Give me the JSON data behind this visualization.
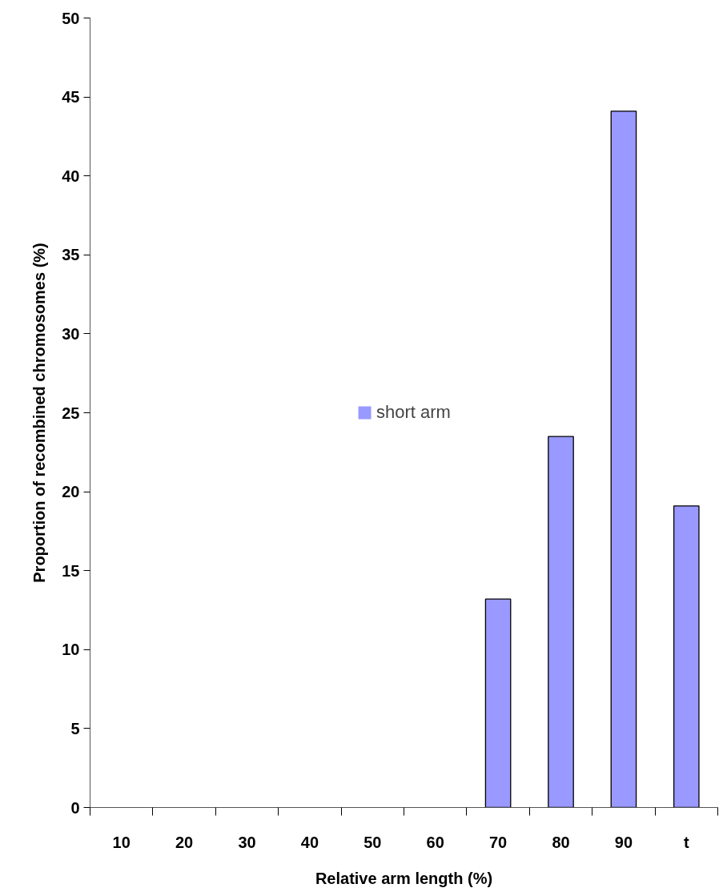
{
  "chart_data": {
    "type": "bar",
    "xlabel": "Relative arm length (%)",
    "ylabel": "Proportion of recombined chromosomes (%)",
    "categories": [
      "10",
      "20",
      "30",
      "40",
      "50",
      "60",
      "70",
      "80",
      "90",
      "t"
    ],
    "series": [
      {
        "name": "short arm",
        "color": "#9999ff",
        "values": [
          0,
          0,
          0,
          0,
          0,
          0,
          13.2,
          23.5,
          44.1,
          19.1
        ]
      }
    ],
    "ylim": [
      0,
      50
    ],
    "yticks": [
      0,
      5,
      10,
      15,
      20,
      25,
      30,
      35,
      40,
      45,
      50
    ],
    "grid": false,
    "legend": "center"
  }
}
